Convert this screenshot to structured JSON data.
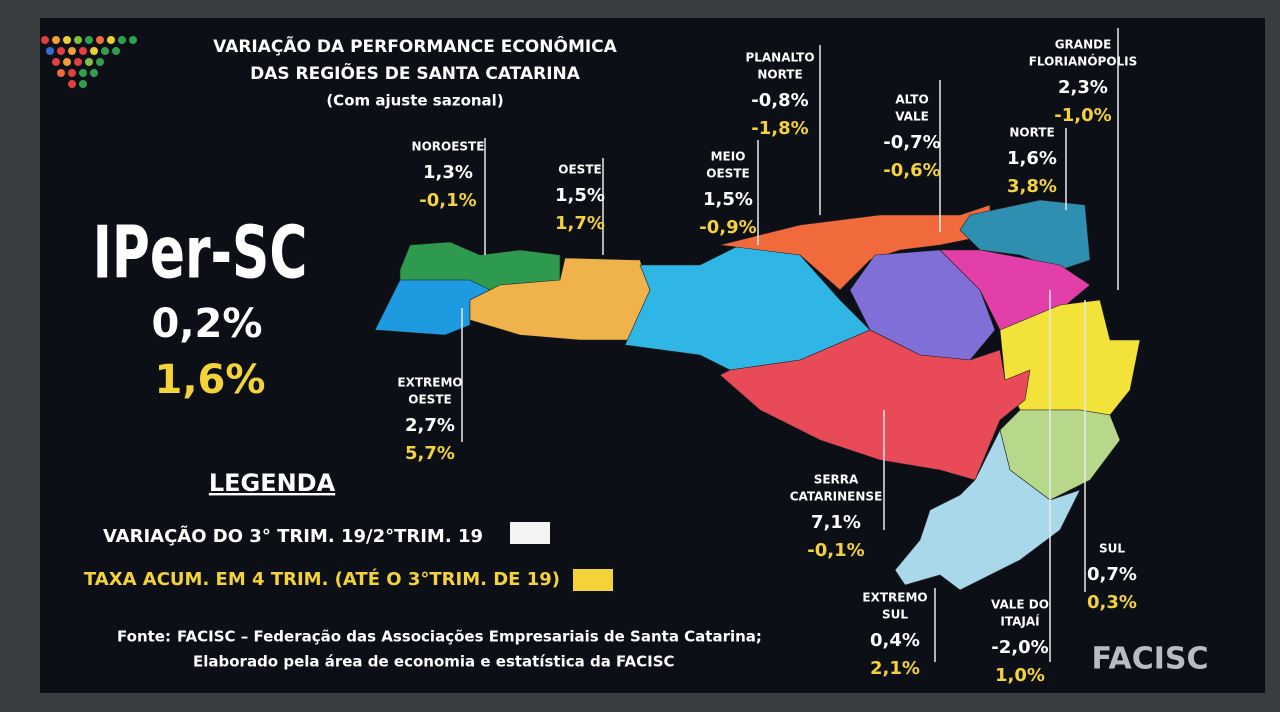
{
  "header": {
    "title": [
      "VARIAÇÃO DA PERFORMANCE ECONÔMICA",
      "DAS REGIÕES DE SANTA CATARINA"
    ],
    "subtitle": "(Com ajuste sazonal)"
  },
  "index": {
    "name": "IPer-SC",
    "quarterly": "0,2%",
    "accumulated": "1,6%"
  },
  "regions": [
    {
      "name": [
        "NOROESTE"
      ],
      "quarterly": "1,3%",
      "accumulated": "-0,1%"
    },
    {
      "name": [
        "OESTE"
      ],
      "quarterly": "1,5%",
      "accumulated": "1,7%"
    },
    {
      "name": [
        "MEIO",
        "OESTE"
      ],
      "quarterly": "1,5%",
      "accumulated": "-0,9%"
    },
    {
      "name": [
        "PLANALTO",
        "NORTE"
      ],
      "quarterly": "-0,8%",
      "accumulated": "-1,8%"
    },
    {
      "name": [
        "ALTO",
        "VALE"
      ],
      "quarterly": "-0,7%",
      "accumulated": "-0,6%"
    },
    {
      "name": [
        "NORTE"
      ],
      "quarterly": "1,6%",
      "accumulated": "3,8%"
    },
    {
      "name": [
        "GRANDE",
        "FLORIANÓPOLIS"
      ],
      "quarterly": "2,3%",
      "accumulated": "-1,0%"
    },
    {
      "name": [
        "EXTREMO",
        "OESTE"
      ],
      "quarterly": "2,7%",
      "accumulated": "5,7%"
    },
    {
      "name": [
        "SERRA",
        "CATARINENSE"
      ],
      "quarterly": "7,1%",
      "accumulated": "-0,1%"
    },
    {
      "name": [
        "EXTREMO",
        "SUL"
      ],
      "quarterly": "0,4%",
      "accumulated": "2,1%"
    },
    {
      "name": [
        "VALE DO",
        "ITAJAÍ"
      ],
      "quarterly": "-2,0%",
      "accumulated": "1,0%"
    },
    {
      "name": [
        "SUL"
      ],
      "quarterly": "0,7%",
      "accumulated": "0,3%"
    }
  ],
  "legend": {
    "title": "LEGENDA",
    "items": [
      {
        "label": "VARIAÇÃO DO 3° TRIM. 19/2°TRIM. 19"
      },
      {
        "label": "TAXA ACUM. EM 4 TRIM. (ATÉ O 3°TRIM. DE 19)"
      }
    ]
  },
  "source": {
    "label": "Fonte:",
    "lines": [
      "FACISC – Federação das Associações Empresariais de Santa Catarina;",
      "Elaborado pela área de economia e estatística da FACISC"
    ]
  },
  "logo": "FACISC"
}
